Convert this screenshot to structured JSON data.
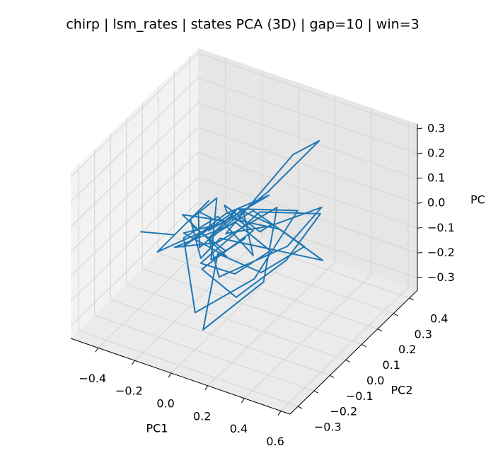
{
  "chart_data": {
    "type": "line3d",
    "title": "chirp | lsm_rates | states PCA (3D) | gap=10 | win=3",
    "xlabel": "PC1",
    "ylabel": "PC2",
    "zlabel": "PC",
    "color": "#1f77b4",
    "grid": true,
    "xlim": [
      -0.55,
      0.65
    ],
    "ylim": [
      -0.35,
      0.45
    ],
    "zlim": [
      -0.35,
      0.32
    ],
    "xticks": [
      {
        "value": -0.4,
        "label": "−0.4"
      },
      {
        "value": -0.2,
        "label": "−0.2"
      },
      {
        "value": 0,
        "label": "0.0"
      },
      0.2,
      0.4,
      0.6
    ],
    "yticks": [
      {
        "value": -0.3,
        "label": "−0.3"
      },
      {
        "value": -0.2,
        "label": "−0.2"
      },
      {
        "value": -0.1,
        "label": "−0.1"
      },
      {
        "value": 0,
        "label": "0.0"
      },
      0.1,
      0.2,
      0.3,
      0.4
    ],
    "zticks": [
      {
        "value": -0.3,
        "label": "−0.3"
      },
      {
        "value": -0.2,
        "label": "−0.2"
      },
      {
        "value": -0.1,
        "label": "−0.1"
      },
      {
        "value": 0,
        "label": "0.0"
      },
      0.1,
      0.2,
      0.3
    ],
    "x": [
      -0.3,
      -0.2,
      -0.1,
      -0.25,
      -0.05,
      -0.2,
      0.0,
      -0.15,
      -0.1,
      0.05,
      -0.2,
      -0.05,
      0.1,
      -0.1,
      0.0,
      -0.2,
      -0.15,
      0.05,
      0.2,
      0.1,
      -0.05,
      0.15,
      0.3,
      0.2,
      0.0,
      -0.1,
      0.1,
      0.25,
      0.1,
      -0.05,
      0.0,
      0.2,
      0.1,
      -0.1,
      -0.2,
      0.05,
      0.15,
      0.0,
      -0.1,
      0.05,
      0.25,
      0.15,
      0.05,
      -0.05,
      0.1,
      0.0,
      -0.1,
      0.05,
      0.2,
      0.1,
      0.3,
      0.15,
      0.0,
      -0.15,
      -0.05,
      0.1,
      0.0,
      -0.1,
      0.05,
      0.2,
      0.35,
      0.2,
      0.05,
      -0.1,
      -0.2,
      -0.1,
      0.0,
      0.1,
      -0.05,
      -0.15
    ],
    "y": [
      -0.2,
      -0.1,
      0.0,
      -0.15,
      0.05,
      -0.05,
      0.0,
      -0.1,
      0.1,
      0.0,
      -0.05,
      0.05,
      0.15,
      0.0,
      -0.1,
      0.05,
      0.0,
      0.2,
      0.35,
      0.3,
      0.05,
      0.1,
      0.25,
      0.15,
      -0.05,
      0.0,
      0.05,
      0.2,
      0.1,
      0.0,
      -0.15,
      0.0,
      0.2,
      0.05,
      -0.1,
      0.0,
      0.1,
      0.05,
      -0.05,
      0.15,
      0.3,
      0.2,
      0.0,
      -0.1,
      0.05,
      0.0,
      0.1,
      0.15,
      0.05,
      -0.05,
      0.1,
      0.0,
      -0.2,
      -0.1,
      0.0,
      0.05,
      0.1,
      0.0,
      -0.05,
      0.1,
      0.2,
      0.05,
      -0.1,
      -0.05,
      0.0,
      0.05,
      -0.1,
      0.0,
      0.05,
      -0.05
    ],
    "z": [
      0.05,
      0.0,
      0.1,
      -0.05,
      0.0,
      0.05,
      -0.1,
      0.02,
      -0.05,
      0.1,
      -0.08,
      0.03,
      0.08,
      -0.02,
      0.12,
      0.0,
      -0.1,
      0.05,
      0.2,
      0.15,
      -0.05,
      0.0,
      0.02,
      -0.1,
      -0.15,
      -0.05,
      0.08,
      -0.12,
      -0.2,
      -0.1,
      -0.3,
      -0.15,
      0.0,
      -0.1,
      -0.05,
      0.05,
      -0.1,
      -0.2,
      -0.12,
      0.0,
      -0.05,
      -0.2,
      -0.25,
      -0.1,
      0.0,
      0.08,
      0.02,
      -0.08,
      0.05,
      0.15,
      0.1,
      -0.15,
      -0.2,
      0.0,
      0.05,
      -0.1,
      0.03,
      -0.05,
      0.1,
      0.0,
      -0.15,
      -0.05,
      0.05,
      -0.1,
      0.0,
      0.08,
      -0.05,
      0.0,
      -0.12,
      0.02
    ]
  }
}
